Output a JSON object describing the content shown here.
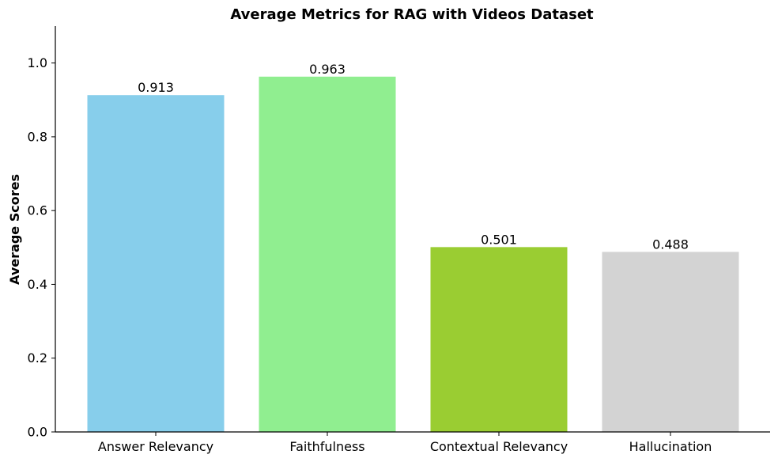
{
  "chart_data": {
    "type": "bar",
    "title": "Average Metrics for RAG with Videos Dataset",
    "xlabel": "",
    "ylabel": "Average Scores",
    "categories": [
      "Answer Relevancy",
      "Faithfulness",
      "Contextual Relevancy",
      "Hallucination"
    ],
    "values": [
      0.913,
      0.963,
      0.501,
      0.488
    ],
    "value_labels": [
      "0.913",
      "0.963",
      "0.501",
      "0.488"
    ],
    "colors": [
      "#87ceeb",
      "#90ee90",
      "#9acd32",
      "#d3d3d3"
    ],
    "ylim": [
      0,
      1.1
    ],
    "yticks": [
      0.0,
      0.2,
      0.4,
      0.6,
      0.8,
      1.0
    ],
    "ytick_labels": [
      "0.0",
      "0.2",
      "0.4",
      "0.6",
      "0.8",
      "1.0"
    ],
    "grid": false,
    "legend": "none",
    "spines": [
      "left",
      "bottom"
    ]
  }
}
